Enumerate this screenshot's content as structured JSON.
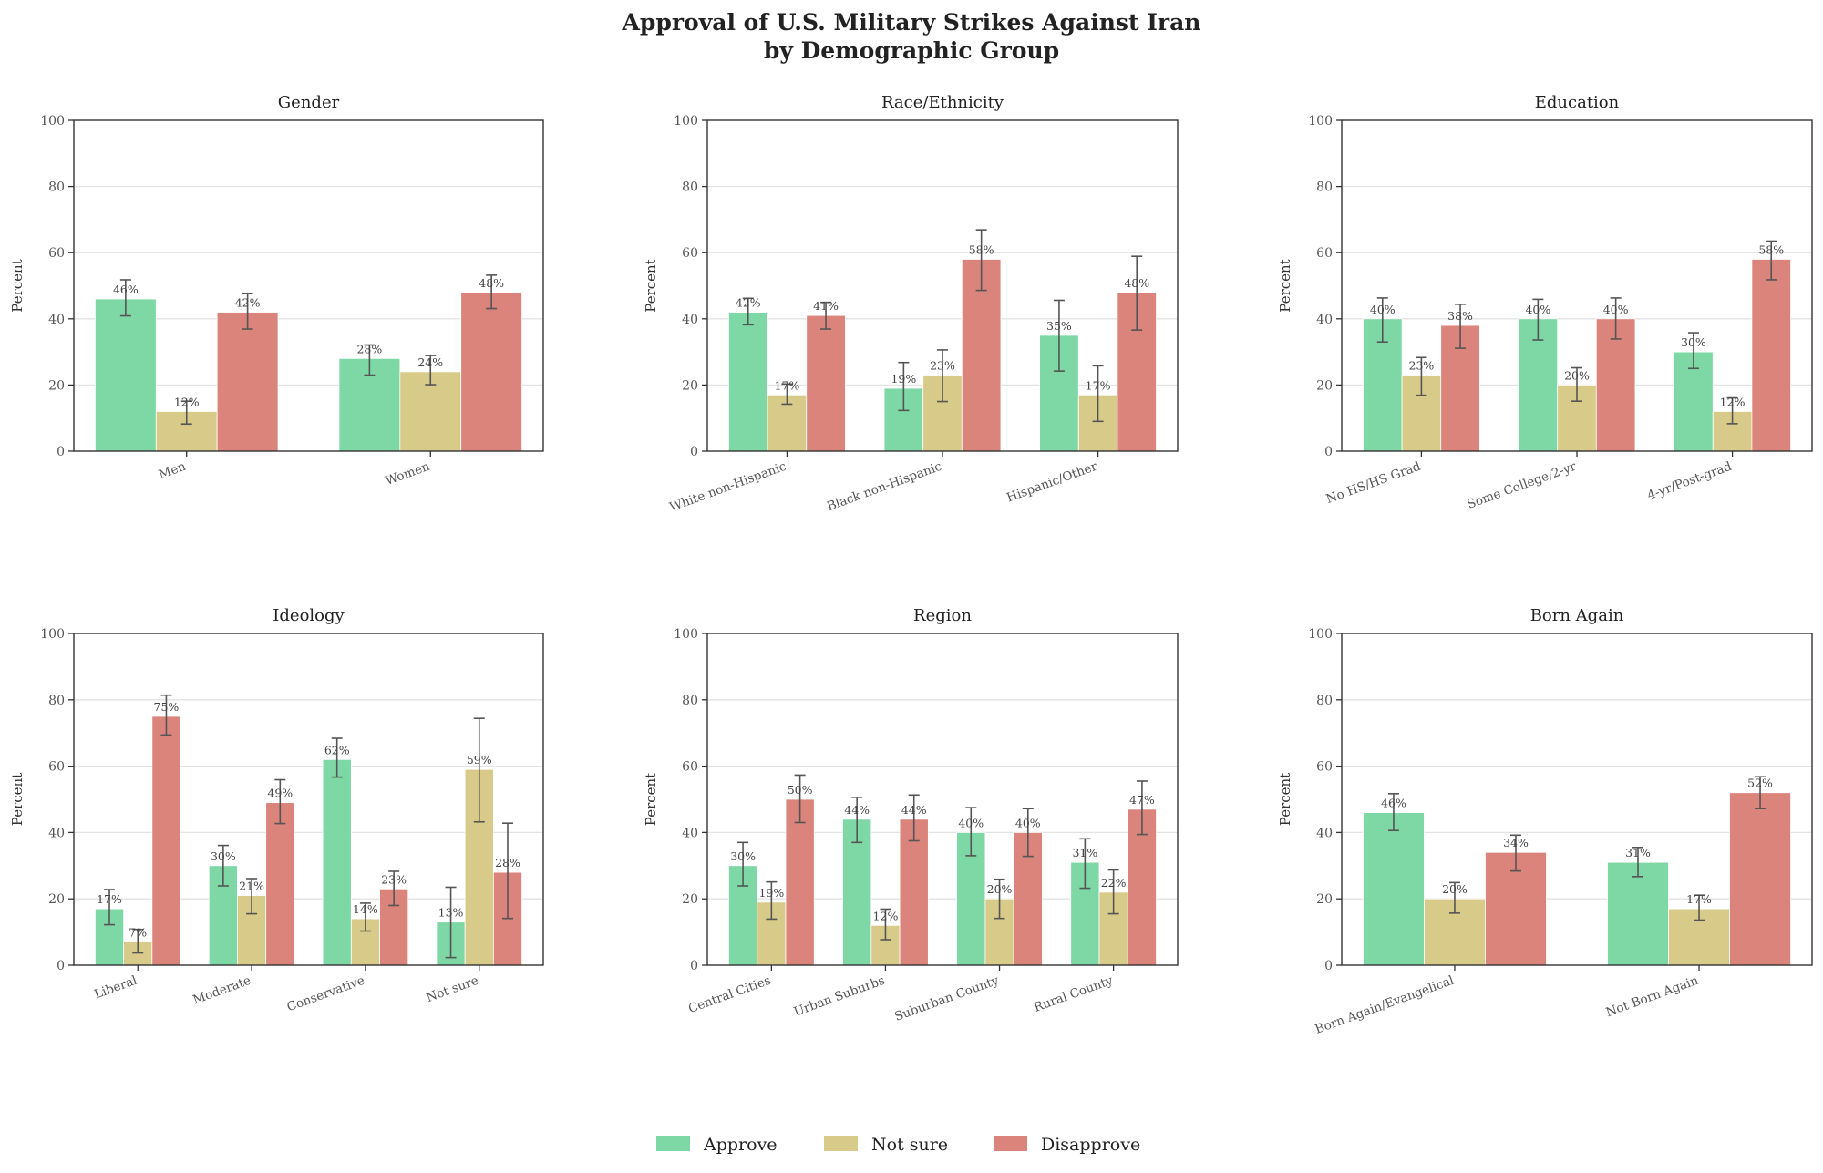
{
  "chart_data": {
    "type": "bar",
    "title": "Approval of U.S. Military Strikes Against Iran\nby Demographic Group",
    "title_lines": [
      "Approval of U.S. Military Strikes Against Iran",
      "by Demographic Group"
    ],
    "ylabel": "Percent",
    "ylim": [
      0,
      100
    ],
    "yticks": [
      0,
      20,
      40,
      60,
      80,
      100
    ],
    "grid": "y",
    "legend": {
      "placement": "bottom-center",
      "entries": [
        "Approve",
        "Not sure",
        "Disapprove"
      ]
    },
    "series_colors": {
      "Approve": "#7dd8a5",
      "Not sure": "#d8cb8a",
      "Disapprove": "#da847b"
    },
    "error_bar_color": "#555555",
    "panels": [
      {
        "title": "Gender",
        "categories": [
          "Men",
          "Women"
        ],
        "series": [
          {
            "name": "Approve",
            "values": [
              46,
              28
            ],
            "err_low": [
              40.9,
              23.0
            ],
            "err_high": [
              51.8,
              32.1
            ],
            "labels": [
              "46%",
              "28%"
            ]
          },
          {
            "name": "Not sure",
            "values": [
              12,
              24
            ],
            "err_low": [
              8.2,
              20.1
            ],
            "err_high": [
              15.1,
              28.9
            ],
            "labels": [
              "12%",
              "24%"
            ]
          },
          {
            "name": "Disapprove",
            "values": [
              42,
              48
            ],
            "err_low": [
              36.9,
              43.1
            ],
            "err_high": [
              47.6,
              53.2
            ],
            "labels": [
              "42%",
              "48%"
            ]
          }
        ]
      },
      {
        "title": "Race/Ethnicity",
        "categories": [
          "White non-Hispanic",
          "Black non-Hispanic",
          "Hispanic/Other"
        ],
        "series": [
          {
            "name": "Approve",
            "values": [
              42,
              19,
              35
            ],
            "err_low": [
              38.2,
              12.3,
              24.2
            ],
            "err_high": [
              46.2,
              26.8,
              45.6
            ],
            "labels": [
              "42%",
              "19%",
              "35%"
            ]
          },
          {
            "name": "Not sure",
            "values": [
              17,
              23,
              17
            ],
            "err_low": [
              14.2,
              15.0,
              9.0
            ],
            "err_high": [
              20.3,
              30.6,
              25.8
            ],
            "labels": [
              "17%",
              "23%",
              "17%"
            ]
          },
          {
            "name": "Disapprove",
            "values": [
              41,
              58,
              48
            ],
            "err_low": [
              36.9,
              48.6,
              36.6
            ],
            "err_high": [
              45.0,
              66.9,
              58.9
            ],
            "labels": [
              "41%",
              "58%",
              "48%"
            ]
          }
        ]
      },
      {
        "title": "Education",
        "categories": [
          "No HS/HS Grad",
          "Some College/2-yr",
          "4-yr/Post-grad"
        ],
        "series": [
          {
            "name": "Approve",
            "values": [
              40,
              40,
              30
            ],
            "err_low": [
              33.0,
              33.6,
              25.0
            ],
            "err_high": [
              46.3,
              45.9,
              35.8
            ],
            "labels": [
              "40%",
              "40%",
              "30%"
            ]
          },
          {
            "name": "Not sure",
            "values": [
              23,
              20,
              12
            ],
            "err_low": [
              16.9,
              15.1,
              8.3
            ],
            "err_high": [
              28.3,
              25.2,
              16.1
            ],
            "labels": [
              "23%",
              "20%",
              "12%"
            ]
          },
          {
            "name": "Disapprove",
            "values": [
              38,
              40,
              58
            ],
            "err_low": [
              31.1,
              33.9,
              51.8
            ],
            "err_high": [
              44.4,
              46.3,
              63.5
            ],
            "labels": [
              "38%",
              "40%",
              "58%"
            ]
          }
        ]
      },
      {
        "title": "Ideology",
        "categories": [
          "Liberal",
          "Moderate",
          "Conservative",
          "Not sure"
        ],
        "series": [
          {
            "name": "Approve",
            "values": [
              17,
              30,
              62,
              13
            ],
            "err_low": [
              12.2,
              23.9,
              56.7,
              2.3
            ],
            "err_high": [
              22.8,
              36.1,
              68.4,
              23.5
            ],
            "labels": [
              "17%",
              "30%",
              "62%",
              "13%"
            ]
          },
          {
            "name": "Not sure",
            "values": [
              7,
              21,
              14,
              59
            ],
            "err_low": [
              3.7,
              15.5,
              10.3,
              43.2
            ],
            "err_high": [
              10.8,
              26.1,
              18.7,
              74.4
            ],
            "labels": [
              "7%",
              "21%",
              "14%",
              "59%"
            ]
          },
          {
            "name": "Disapprove",
            "values": [
              75,
              49,
              23,
              28
            ],
            "err_low": [
              69.4,
              42.7,
              18.0,
              14.1
            ],
            "err_high": [
              81.4,
              55.9,
              28.3,
              42.8
            ],
            "labels": [
              "75%",
              "49%",
              "23%",
              "28%"
            ]
          }
        ]
      },
      {
        "title": "Region",
        "categories": [
          "Central Cities",
          "Urban Suburbs",
          "Suburban County",
          "Rural County"
        ],
        "series": [
          {
            "name": "Approve",
            "values": [
              30,
              44,
              40,
              31
            ],
            "err_low": [
              23.9,
              37.0,
              33.0,
              23.2
            ],
            "err_high": [
              37.0,
              50.6,
              47.5,
              38.1
            ],
            "labels": [
              "30%",
              "44%",
              "40%",
              "31%"
            ]
          },
          {
            "name": "Not sure",
            "values": [
              19,
              12,
              20,
              22
            ],
            "err_low": [
              13.9,
              7.7,
              14.1,
              15.5
            ],
            "err_high": [
              25.1,
              16.9,
              25.9,
              28.7
            ],
            "labels": [
              "19%",
              "12%",
              "20%",
              "22%"
            ]
          },
          {
            "name": "Disapprove",
            "values": [
              50,
              44,
              40,
              47
            ],
            "err_low": [
              43.0,
              37.5,
              32.8,
              39.4
            ],
            "err_high": [
              57.3,
              51.3,
              47.2,
              55.5
            ],
            "labels": [
              "50%",
              "44%",
              "40%",
              "47%"
            ]
          }
        ]
      },
      {
        "title": "Born Again",
        "categories": [
          "Born Again/Evangelical",
          "Not Born Again"
        ],
        "series": [
          {
            "name": "Approve",
            "values": [
              46,
              31
            ],
            "err_low": [
              40.6,
              26.7
            ],
            "err_high": [
              51.7,
              35.5
            ],
            "labels": [
              "46%",
              "31%"
            ]
          },
          {
            "name": "Not sure",
            "values": [
              20,
              17
            ],
            "err_low": [
              15.7,
              13.6
            ],
            "err_high": [
              24.9,
              21.1
            ],
            "labels": [
              "20%",
              "17%"
            ]
          },
          {
            "name": "Disapprove",
            "values": [
              34,
              52
            ],
            "err_low": [
              28.4,
              47.2
            ],
            "err_high": [
              39.2,
              56.8
            ],
            "labels": [
              "34%",
              "52%"
            ]
          }
        ]
      }
    ]
  }
}
